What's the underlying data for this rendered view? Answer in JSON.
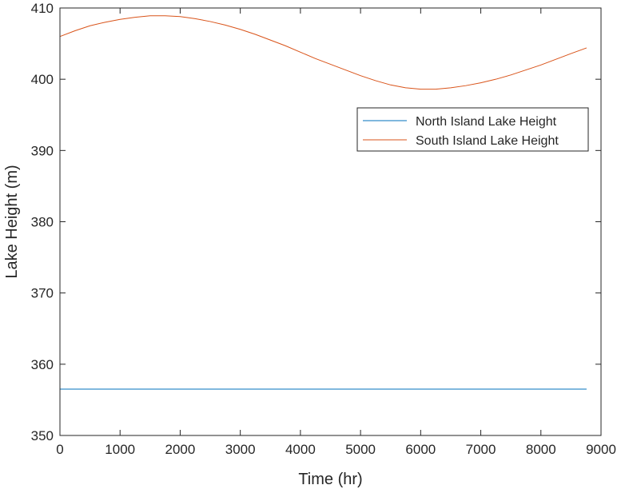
{
  "chart_data": {
    "type": "line",
    "title": "",
    "xlabel": "Time (hr)",
    "ylabel": "Lake Height (m)",
    "xlim": [
      0,
      9000
    ],
    "ylim": [
      350,
      410
    ],
    "xticks": [
      0,
      1000,
      2000,
      3000,
      4000,
      5000,
      6000,
      7000,
      8000,
      9000
    ],
    "yticks": [
      350,
      360,
      370,
      380,
      390,
      400,
      410
    ],
    "grid": false,
    "legend_position": "top-right",
    "series": [
      {
        "name": "North Island Lake Height",
        "color": "#0072BD",
        "x": [
          0,
          1000,
          2000,
          3000,
          4000,
          5000,
          6000,
          7000,
          8000,
          8760
        ],
        "y": [
          356.5,
          356.5,
          356.5,
          356.5,
          356.5,
          356.5,
          356.5,
          356.5,
          356.5,
          356.5
        ]
      },
      {
        "name": "South Island Lake Height",
        "color": "#D95319",
        "x": [
          0,
          250,
          500,
          750,
          1000,
          1250,
          1500,
          1750,
          2000,
          2250,
          2500,
          2750,
          3000,
          3250,
          3500,
          3750,
          4000,
          4250,
          4500,
          4750,
          5000,
          5250,
          5500,
          5750,
          6000,
          6250,
          6500,
          6750,
          7000,
          7250,
          7500,
          7750,
          8000,
          8250,
          8500,
          8760
        ],
        "y": [
          406.0,
          406.8,
          407.5,
          408.0,
          408.4,
          408.7,
          408.9,
          408.9,
          408.8,
          408.5,
          408.1,
          407.6,
          407.0,
          406.3,
          405.5,
          404.7,
          403.8,
          402.9,
          402.1,
          401.3,
          400.5,
          399.8,
          399.2,
          398.8,
          398.6,
          398.6,
          398.8,
          399.1,
          399.5,
          400.0,
          400.6,
          401.3,
          402.0,
          402.8,
          403.6,
          404.4
        ]
      }
    ]
  }
}
